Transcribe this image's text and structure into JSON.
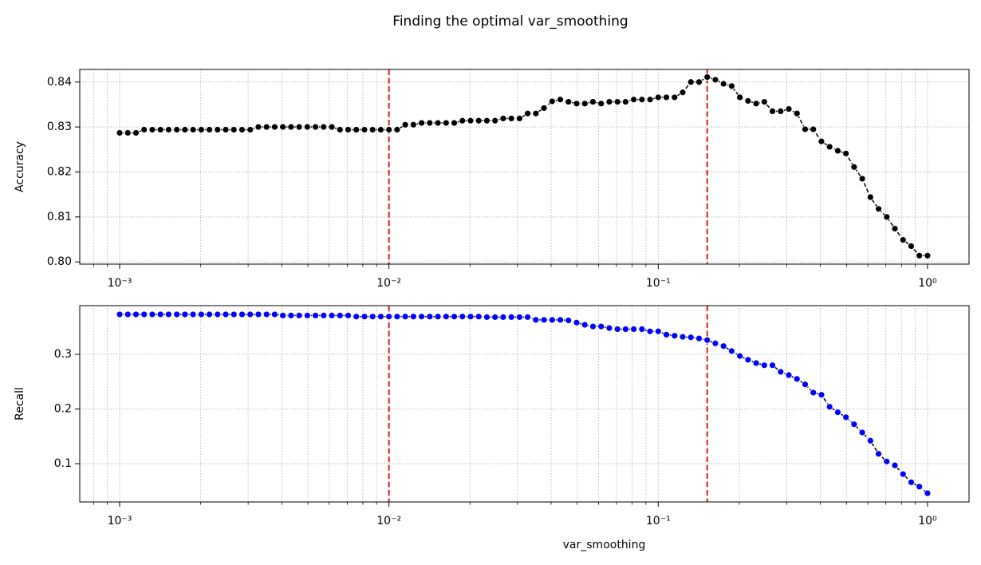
{
  "title": "Finding the optimal var_smoothing",
  "chart_data": [
    {
      "type": "line",
      "ylabel": "Accuracy",
      "xscale": "log",
      "grid": true,
      "minor_grid": true,
      "xlim": [
        0.000711,
        1.426
      ],
      "ylim": [
        0.7995,
        0.8428
      ],
      "xticks": [
        {
          "value": 0.001,
          "label": "10⁻³"
        },
        {
          "value": 0.01,
          "label": "10⁻²"
        },
        {
          "value": 0.1,
          "label": "10⁻¹"
        },
        {
          "value": 1,
          "label": "10⁰"
        }
      ],
      "yticks": [
        {
          "value": 0.8,
          "label": "0.80"
        },
        {
          "value": 0.81,
          "label": "0.81"
        },
        {
          "value": 0.82,
          "label": "0.82"
        },
        {
          "value": 0.83,
          "label": "0.83"
        },
        {
          "value": 0.84,
          "label": "0.84"
        }
      ],
      "vlines": [
        0.01,
        0.152
      ],
      "vline_color": "#e41a1c",
      "line_color": "#000000",
      "x": [
        0.001,
        0.0010723,
        0.0011498,
        0.0012328,
        0.0013219,
        0.0014175,
        0.0015199,
        0.0016298,
        0.0017475,
        0.0018738,
        0.0020092,
        0.0021544,
        0.0023101,
        0.0024771,
        0.0026561,
        0.002848,
        0.0030539,
        0.0032745,
        0.0035112,
        0.0037649,
        0.004037,
        0.0043288,
        0.0046416,
        0.004977,
        0.0053367,
        0.0057224,
        0.0061359,
        0.0065793,
        0.0070548,
        0.0075646,
        0.0081113,
        0.0086975,
        0.009326,
        0.01,
        0.010723,
        0.011498,
        0.012328,
        0.013219,
        0.014175,
        0.015199,
        0.016298,
        0.017475,
        0.018738,
        0.020092,
        0.021544,
        0.023101,
        0.024771,
        0.026561,
        0.02848,
        0.030539,
        0.032745,
        0.035112,
        0.037649,
        0.04037,
        0.043288,
        0.046416,
        0.04977,
        0.053367,
        0.057224,
        0.061359,
        0.065793,
        0.070548,
        0.075646,
        0.081113,
        0.086975,
        0.09326,
        0.1,
        0.10723,
        0.11498,
        0.12328,
        0.13219,
        0.14175,
        0.15199,
        0.16298,
        0.17475,
        0.18738,
        0.20092,
        0.21544,
        0.23101,
        0.24771,
        0.26561,
        0.2848,
        0.30539,
        0.32745,
        0.35112,
        0.37649,
        0.4037,
        0.43288,
        0.46416,
        0.4977,
        0.53367,
        0.57224,
        0.61359,
        0.65793,
        0.70548,
        0.75646,
        0.81113,
        0.86975,
        0.9326,
        1
      ],
      "series": [
        {
          "name": "Accuracy",
          "color": "#000000",
          "values": [
            0.8287,
            0.8287,
            0.8287,
            0.8294,
            0.8294,
            0.8294,
            0.8294,
            0.8294,
            0.8294,
            0.8294,
            0.8294,
            0.8294,
            0.8294,
            0.8294,
            0.8294,
            0.8294,
            0.8294,
            0.83,
            0.83,
            0.83,
            0.83,
            0.83,
            0.83,
            0.83,
            0.83,
            0.83,
            0.83,
            0.8294,
            0.8294,
            0.8294,
            0.8294,
            0.8294,
            0.8294,
            0.8294,
            0.8294,
            0.8305,
            0.8305,
            0.8309,
            0.8309,
            0.8309,
            0.8309,
            0.8309,
            0.8314,
            0.8314,
            0.8314,
            0.8314,
            0.8314,
            0.8319,
            0.8319,
            0.8319,
            0.833,
            0.833,
            0.8342,
            0.8357,
            0.8361,
            0.8356,
            0.8352,
            0.8352,
            0.8356,
            0.8352,
            0.8356,
            0.8356,
            0.8356,
            0.8361,
            0.8361,
            0.8361,
            0.8366,
            0.8366,
            0.8366,
            0.8377,
            0.84,
            0.84,
            0.8411,
            0.8405,
            0.8396,
            0.8391,
            0.8366,
            0.8358,
            0.8352,
            0.8356,
            0.8335,
            0.8335,
            0.834,
            0.833,
            0.8295,
            0.8295,
            0.8268,
            0.8256,
            0.8247,
            0.8241,
            0.8211,
            0.8185,
            0.8144,
            0.8118,
            0.81,
            0.8074,
            0.8049,
            0.8035,
            0.8014,
            0.8014
          ]
        }
      ]
    },
    {
      "type": "line",
      "ylabel": "Recall",
      "xlabel": "var_smoothing",
      "xscale": "log",
      "grid": true,
      "minor_grid": true,
      "xlim": [
        0.000711,
        1.426
      ],
      "ylim": [
        0.03,
        0.389
      ],
      "xticks": [
        {
          "value": 0.001,
          "label": "10⁻³"
        },
        {
          "value": 0.01,
          "label": "10⁻²"
        },
        {
          "value": 0.1,
          "label": "10⁻¹"
        },
        {
          "value": 1,
          "label": "10⁰"
        }
      ],
      "yticks": [
        0.1,
        0.2,
        0.3
      ],
      "vlines": [
        0.01,
        0.152
      ],
      "vline_color": "#e41a1c",
      "line_color": "#000000",
      "x": [
        0.001,
        0.0010723,
        0.0011498,
        0.0012328,
        0.0013219,
        0.0014175,
        0.0015199,
        0.0016298,
        0.0017475,
        0.0018738,
        0.0020092,
        0.0021544,
        0.0023101,
        0.0024771,
        0.0026561,
        0.002848,
        0.0030539,
        0.0032745,
        0.0035112,
        0.0037649,
        0.004037,
        0.0043288,
        0.0046416,
        0.004977,
        0.0053367,
        0.0057224,
        0.0061359,
        0.0065793,
        0.0070548,
        0.0075646,
        0.0081113,
        0.0086975,
        0.009326,
        0.01,
        0.010723,
        0.011498,
        0.012328,
        0.013219,
        0.014175,
        0.015199,
        0.016298,
        0.017475,
        0.018738,
        0.020092,
        0.021544,
        0.023101,
        0.024771,
        0.026561,
        0.02848,
        0.030539,
        0.032745,
        0.035112,
        0.037649,
        0.04037,
        0.043288,
        0.046416,
        0.04977,
        0.053367,
        0.057224,
        0.061359,
        0.065793,
        0.070548,
        0.075646,
        0.081113,
        0.086975,
        0.09326,
        0.1,
        0.10723,
        0.11498,
        0.12328,
        0.13219,
        0.14175,
        0.15199,
        0.16298,
        0.17475,
        0.18738,
        0.20092,
        0.21544,
        0.23101,
        0.24771,
        0.26561,
        0.2848,
        0.30539,
        0.32745,
        0.35112,
        0.37649,
        0.4037,
        0.43288,
        0.46416,
        0.4977,
        0.53367,
        0.57224,
        0.61359,
        0.65793,
        0.70548,
        0.75646,
        0.81113,
        0.86975,
        0.9326,
        1
      ],
      "series": [
        {
          "name": "Recall",
          "color": "#0000ff",
          "values": [
            0.373,
            0.373,
            0.373,
            0.373,
            0.373,
            0.373,
            0.373,
            0.373,
            0.373,
            0.373,
            0.373,
            0.373,
            0.373,
            0.373,
            0.373,
            0.373,
            0.373,
            0.373,
            0.373,
            0.373,
            0.371,
            0.371,
            0.371,
            0.371,
            0.371,
            0.371,
            0.371,
            0.371,
            0.371,
            0.369,
            0.369,
            0.369,
            0.369,
            0.369,
            0.369,
            0.369,
            0.369,
            0.369,
            0.369,
            0.369,
            0.369,
            0.369,
            0.369,
            0.369,
            0.369,
            0.368,
            0.368,
            0.368,
            0.368,
            0.368,
            0.368,
            0.363,
            0.363,
            0.363,
            0.363,
            0.362,
            0.358,
            0.354,
            0.351,
            0.351,
            0.348,
            0.346,
            0.346,
            0.346,
            0.346,
            0.342,
            0.342,
            0.336,
            0.334,
            0.332,
            0.331,
            0.329,
            0.326,
            0.32,
            0.315,
            0.306,
            0.297,
            0.29,
            0.284,
            0.28,
            0.28,
            0.268,
            0.262,
            0.255,
            0.245,
            0.23,
            0.226,
            0.204,
            0.194,
            0.185,
            0.172,
            0.157,
            0.142,
            0.118,
            0.104,
            0.097,
            0.081,
            0.066,
            0.058,
            0.046
          ]
        }
      ]
    }
  ]
}
